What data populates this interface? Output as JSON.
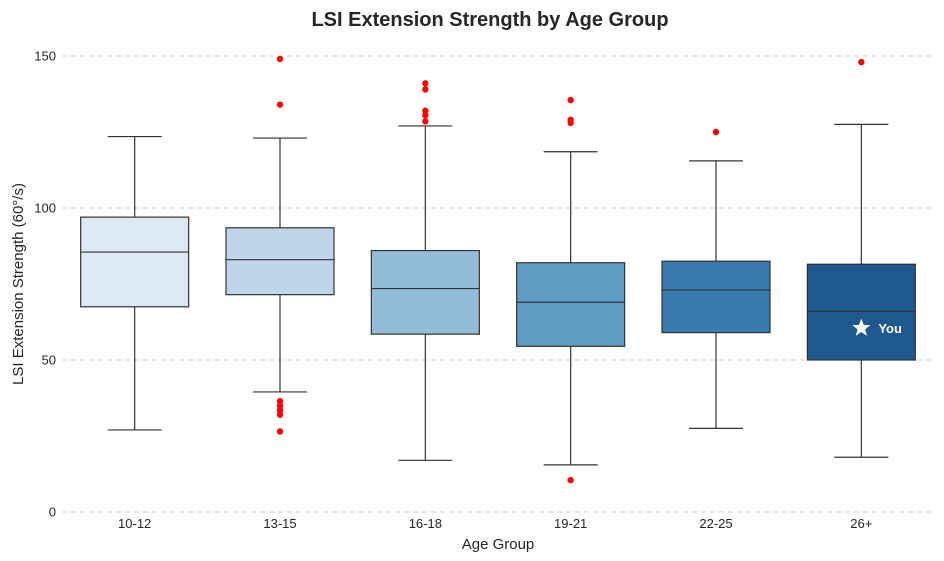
{
  "chart_data": {
    "type": "box",
    "title": "LSI Extension Strength by Age Group",
    "xlabel": "Age Group",
    "ylabel": "LSI Extension Strength (60°/s)",
    "ylim": [
      0,
      150
    ],
    "yticks": [
      0,
      50,
      100,
      150
    ],
    "grid": "y-dashed",
    "categories": [
      "10-12",
      "13-15",
      "16-18",
      "19-21",
      "22-25",
      "26+"
    ],
    "colors": [
      "#dce9f5",
      "#bfd6ea",
      "#93bcd6",
      "#619cc4",
      "#3b7aae",
      "#1f5791"
    ],
    "outlier_color": "#ff0000",
    "boxes": [
      {
        "whisker_low": 27,
        "q1": 67.5,
        "median": 85.5,
        "q3": 97,
        "whisker_high": 123.5,
        "outliers": []
      },
      {
        "whisker_low": 39.5,
        "q1": 71.5,
        "median": 83,
        "q3": 93.5,
        "whisker_high": 123,
        "outliers": [
          149,
          134,
          36.5,
          35,
          33.5,
          32,
          26.5
        ]
      },
      {
        "whisker_low": 17,
        "q1": 58.5,
        "median": 73.5,
        "q3": 86,
        "whisker_high": 127,
        "outliers": [
          141,
          139,
          132,
          130.5,
          128.5
        ]
      },
      {
        "whisker_low": 15.5,
        "q1": 54.5,
        "median": 69,
        "q3": 82,
        "whisker_high": 118.5,
        "outliers": [
          135.5,
          129,
          128,
          10.5
        ]
      },
      {
        "whisker_low": 27.5,
        "q1": 59,
        "median": 73,
        "q3": 82.5,
        "whisker_high": 115.5,
        "outliers": [
          125
        ]
      },
      {
        "whisker_low": 18,
        "q1": 50,
        "median": 66,
        "q3": 81.5,
        "whisker_high": 127.5,
        "outliers": [
          148
        ]
      }
    ],
    "annotation": {
      "label": "You",
      "category": "26+",
      "value": 60.5,
      "marker": "star",
      "color": "#ffffff"
    }
  }
}
